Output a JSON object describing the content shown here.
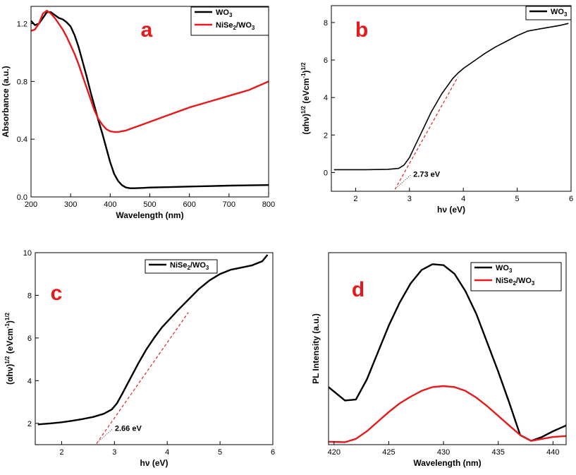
{
  "colors": {
    "black": "#000000",
    "red": "#e41a1c",
    "fit_dash": "#d62728"
  },
  "chart_data": [
    {
      "id": "a",
      "type": "line",
      "panel_label": "a",
      "xlabel": "Wavelength (nm)",
      "ylabel": "Absorbance (a.u.)",
      "xlim": [
        200,
        800
      ],
      "ylim": [
        0.0,
        1.32
      ],
      "xticks": [
        "200",
        "300",
        "400",
        "500",
        "600",
        "700",
        "800"
      ],
      "yticks": [
        "0.0",
        "0.4",
        "0.8",
        "1.2"
      ],
      "legend_position": "top-right",
      "series": [
        {
          "name": "WO",
          "sub": "3",
          "suffix": "",
          "color": "#000000",
          "x": [
            200,
            210,
            220,
            230,
            240,
            250,
            260,
            270,
            280,
            290,
            300,
            310,
            320,
            330,
            340,
            350,
            360,
            370,
            380,
            390,
            400,
            410,
            420,
            430,
            440,
            450,
            460,
            480,
            500,
            550,
            600,
            650,
            700,
            750,
            800
          ],
          "y": [
            1.22,
            1.19,
            1.2,
            1.24,
            1.28,
            1.28,
            1.26,
            1.24,
            1.23,
            1.21,
            1.18,
            1.12,
            1.04,
            0.94,
            0.84,
            0.73,
            0.63,
            0.53,
            0.44,
            0.34,
            0.24,
            0.16,
            0.11,
            0.08,
            0.065,
            0.06,
            0.06,
            0.062,
            0.065,
            0.068,
            0.072,
            0.075,
            0.078,
            0.08,
            0.082
          ]
        },
        {
          "name": "NiSe",
          "sub": "2",
          "suffix": "/WO3",
          "color": "#e41a1c",
          "x": [
            200,
            210,
            220,
            230,
            240,
            250,
            260,
            270,
            280,
            290,
            300,
            310,
            320,
            330,
            340,
            350,
            360,
            370,
            380,
            390,
            400,
            410,
            420,
            430,
            440,
            460,
            480,
            500,
            550,
            600,
            650,
            700,
            750,
            800
          ],
          "y": [
            1.15,
            1.16,
            1.2,
            1.27,
            1.29,
            1.27,
            1.24,
            1.2,
            1.16,
            1.11,
            1.05,
            0.99,
            0.92,
            0.84,
            0.76,
            0.68,
            0.6,
            0.54,
            0.5,
            0.47,
            0.455,
            0.45,
            0.45,
            0.455,
            0.46,
            0.48,
            0.5,
            0.52,
            0.57,
            0.62,
            0.66,
            0.7,
            0.74,
            0.8
          ]
        }
      ]
    },
    {
      "id": "b",
      "type": "line",
      "panel_label": "b",
      "xlabel": "hν (eV)",
      "ylabel": "(αhν)",
      "ylabel_sup": "1/2",
      "ylabel_units": "(eVcm",
      "ylabel_units_sup": "-1",
      "ylabel_units_end": ")",
      "ylabel_units_sup2": "1/2",
      "xlim": [
        1.55,
        6.0
      ],
      "ylim": [
        -1.0,
        8.9
      ],
      "xticks": [
        "2",
        "3",
        "4",
        "5",
        "6"
      ],
      "yticks": [
        "0",
        "2",
        "4",
        "6",
        "8"
      ],
      "legend_position": "top-right",
      "annotation": "2.73 eV",
      "fit_line": {
        "x": [
          2.73,
          3.9
        ],
        "y": [
          -0.9,
          5.1
        ]
      },
      "series": [
        {
          "name": "WO",
          "sub": "3",
          "suffix": "",
          "color": "#000000",
          "x": [
            1.6,
            1.8,
            2.0,
            2.2,
            2.4,
            2.6,
            2.8,
            2.9,
            3.0,
            3.1,
            3.2,
            3.3,
            3.4,
            3.5,
            3.6,
            3.7,
            3.8,
            3.9,
            4.0,
            4.2,
            4.4,
            4.6,
            4.8,
            5.0,
            5.2,
            5.4,
            5.6,
            5.8,
            5.95
          ],
          "y": [
            0.15,
            0.15,
            0.15,
            0.15,
            0.16,
            0.17,
            0.22,
            0.4,
            0.8,
            1.4,
            2.0,
            2.6,
            3.2,
            3.7,
            4.2,
            4.6,
            5.0,
            5.3,
            5.55,
            5.95,
            6.35,
            6.7,
            7.0,
            7.3,
            7.55,
            7.65,
            7.75,
            7.85,
            7.95
          ]
        }
      ]
    },
    {
      "id": "c",
      "type": "line",
      "panel_label": "c",
      "xlabel": "hν (eV)",
      "ylabel": "(αhν)",
      "ylabel_sup": "1/2",
      "ylabel_units": "(eVcm",
      "ylabel_units_sup": "-1",
      "ylabel_units_end": ")",
      "ylabel_units_sup2": "1/2",
      "xlim": [
        1.5,
        6.0
      ],
      "ylim": [
        1.0,
        10.0
      ],
      "xticks": [
        "2",
        "3",
        "4",
        "5",
        "6"
      ],
      "yticks": [
        "2",
        "4",
        "6",
        "8",
        "10"
      ],
      "legend_position": "top-right",
      "annotation": "2.66 eV",
      "fit_line": {
        "x": [
          2.66,
          4.4
        ],
        "y": [
          1.05,
          7.2
        ]
      },
      "series": [
        {
          "name": "NiSe",
          "sub": "2",
          "suffix": "/WO3",
          "color": "#000000",
          "x": [
            1.55,
            1.8,
            2.0,
            2.2,
            2.4,
            2.6,
            2.8,
            2.95,
            3.05,
            3.15,
            3.3,
            3.45,
            3.6,
            3.75,
            3.9,
            4.05,
            4.2,
            4.4,
            4.6,
            4.8,
            5.0,
            5.2,
            5.4,
            5.6,
            5.8,
            5.9
          ],
          "y": [
            1.95,
            2.0,
            2.05,
            2.12,
            2.2,
            2.3,
            2.45,
            2.65,
            2.95,
            3.4,
            4.1,
            4.8,
            5.45,
            6.0,
            6.5,
            6.9,
            7.3,
            7.8,
            8.3,
            8.7,
            9.0,
            9.2,
            9.3,
            9.4,
            9.6,
            9.9
          ]
        }
      ]
    },
    {
      "id": "d",
      "type": "line",
      "panel_label": "d",
      "xlabel": "Wavelength (nm)",
      "ylabel": "PL Intensity (a.u.)",
      "xlim": [
        419.5,
        441.2
      ],
      "ylim": [
        0.0,
        1.0
      ],
      "xticks": [
        "420",
        "425",
        "430",
        "435",
        "440"
      ],
      "yticks": [],
      "legend_position": "top-right",
      "series": [
        {
          "name": "WO",
          "sub": "3",
          "suffix": "",
          "color": "#000000",
          "x": [
            419.5,
            421,
            422,
            423,
            424,
            425,
            426,
            427,
            428,
            429,
            430,
            431,
            432,
            433,
            434,
            435,
            436,
            437,
            438,
            439,
            440,
            441.2
          ],
          "y": [
            0.3,
            0.23,
            0.235,
            0.34,
            0.48,
            0.62,
            0.74,
            0.84,
            0.91,
            0.94,
            0.935,
            0.89,
            0.8,
            0.68,
            0.53,
            0.38,
            0.22,
            0.05,
            0.02,
            0.04,
            0.07,
            0.1
          ]
        },
        {
          "name": "NiSe",
          "sub": "2",
          "suffix": "/WO3",
          "color": "#e41a1c",
          "x": [
            419.5,
            421,
            422,
            423,
            424,
            425,
            426,
            427,
            428,
            429,
            430,
            431,
            432,
            433,
            434,
            435,
            436,
            437,
            438,
            439,
            440,
            441.2
          ],
          "y": [
            0.015,
            0.013,
            0.03,
            0.07,
            0.12,
            0.17,
            0.215,
            0.25,
            0.28,
            0.3,
            0.305,
            0.3,
            0.28,
            0.245,
            0.2,
            0.15,
            0.1,
            0.05,
            0.02,
            0.03,
            0.04,
            0.045
          ]
        }
      ]
    }
  ]
}
